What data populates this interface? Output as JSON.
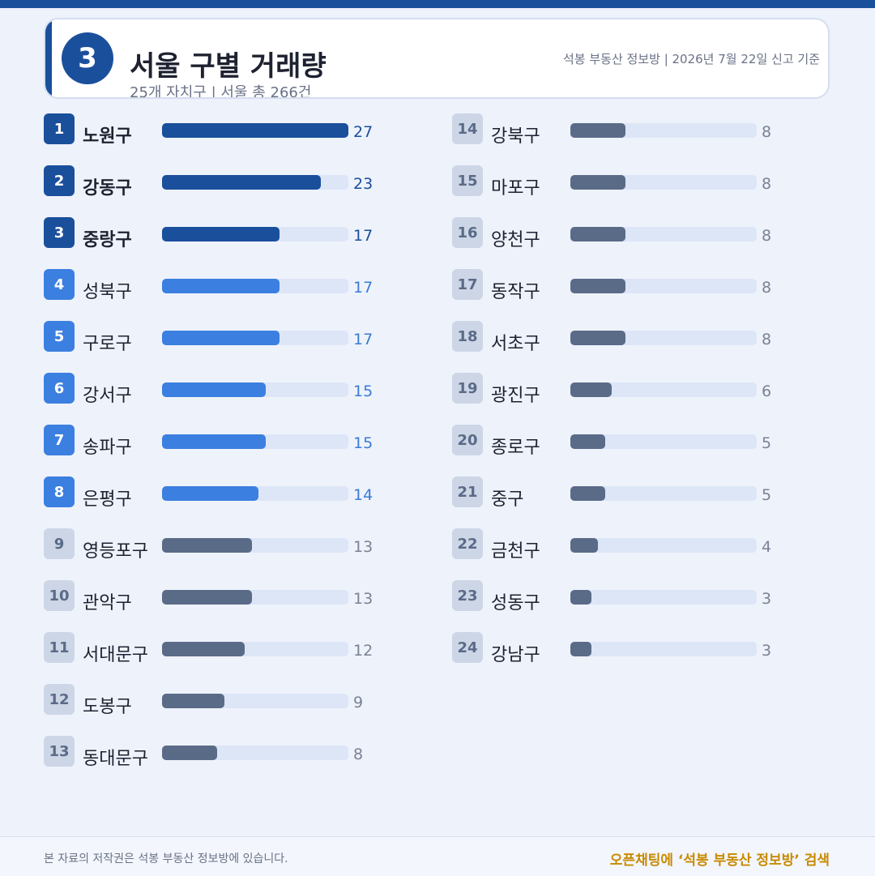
{
  "header": {
    "badge": "3",
    "title": "서울 구별 거래량",
    "subtitle": "25개 자치구 | 서울 총 266건",
    "source": "석봉 부동산 정보방 | 2026년 7월 22일 신고 기준"
  },
  "colors": {
    "tier_top": "#1a4f9c",
    "tier_mid": "#3b7fe0",
    "tier_low": "#5a6b88",
    "track": "#dde6f7"
  },
  "chart_data": {
    "type": "bar",
    "orientation": "horizontal",
    "title": "서울 구별 거래량",
    "xlim": [
      0,
      27
    ],
    "categories": [
      "노원구",
      "강동구",
      "중랑구",
      "성북구",
      "구로구",
      "강서구",
      "송파구",
      "은평구",
      "영등포구",
      "관악구",
      "서대문구",
      "도봉구",
      "동대문구",
      "강북구",
      "마포구",
      "양천구",
      "동작구",
      "서초구",
      "광진구",
      "종로구",
      "중구",
      "금천구",
      "성동구",
      "강남구"
    ],
    "values": [
      27,
      23,
      17,
      17,
      17,
      15,
      15,
      14,
      13,
      13,
      12,
      9,
      8,
      8,
      8,
      8,
      8,
      8,
      6,
      5,
      5,
      4,
      3,
      3
    ],
    "ranks": [
      1,
      2,
      3,
      4,
      5,
      6,
      7,
      8,
      9,
      10,
      11,
      12,
      13,
      14,
      15,
      16,
      17,
      18,
      19,
      20,
      21,
      22,
      23,
      24
    ],
    "tiers": [
      "top",
      "top",
      "top",
      "mid",
      "mid",
      "mid",
      "mid",
      "mid",
      "low",
      "low",
      "low",
      "low",
      "low",
      "low",
      "low",
      "low",
      "low",
      "low",
      "low",
      "low",
      "low",
      "low",
      "low",
      "low"
    ]
  },
  "footer": {
    "copyright": "본 자료의 저작권은 석봉 부동산 정보방에 있습니다.",
    "cta": "오픈채팅에 ‘석봉 부동산 정보방’ 검색"
  }
}
